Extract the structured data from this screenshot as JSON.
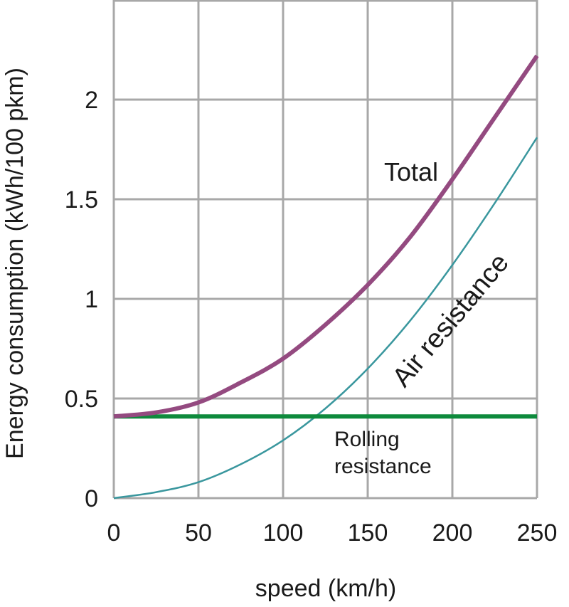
{
  "chart_data": {
    "type": "line",
    "xlabel": "speed (km/h)",
    "ylabel": "Energy consumption (kWh/100 pkm)",
    "xlim": [
      0,
      250
    ],
    "ylim": [
      0,
      2.2
    ],
    "xticks": [
      "0",
      "50",
      "100",
      "150",
      "200",
      "250"
    ],
    "yticks": [
      "0",
      "0.5",
      "1",
      "1.5",
      "2"
    ],
    "grid": true,
    "series": [
      {
        "name": "Total",
        "color": "#944a80",
        "x": [
          0,
          25,
          50,
          75,
          100,
          125,
          150,
          175,
          200,
          225,
          250
        ],
        "y": [
          0.41,
          0.43,
          0.48,
          0.58,
          0.7,
          0.87,
          1.07,
          1.31,
          1.6,
          1.91,
          2.22
        ]
      },
      {
        "name": "Air resistance",
        "color": "#3a979e",
        "x": [
          0,
          25,
          50,
          75,
          100,
          125,
          150,
          175,
          200,
          225,
          250
        ],
        "y": [
          0.0,
          0.03,
          0.08,
          0.17,
          0.29,
          0.45,
          0.65,
          0.89,
          1.17,
          1.48,
          1.81
        ]
      },
      {
        "name": "Rolling resistance",
        "name_lines": [
          "Rolling",
          "resistance"
        ],
        "color": "#0e8a3c",
        "x": [
          0,
          250
        ],
        "y": [
          0.41,
          0.41
        ]
      }
    ]
  }
}
